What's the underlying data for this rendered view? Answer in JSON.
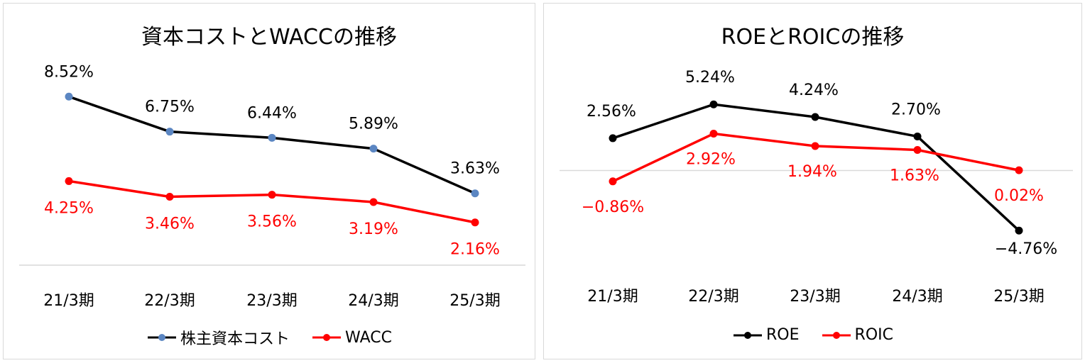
{
  "chart_data": [
    {
      "type": "line",
      "title": "資本コストとWACCの推移",
      "categories": [
        "21/3期",
        "22/3期",
        "23/3期",
        "24/3期",
        "25/3期"
      ],
      "series": [
        {
          "name": "株主資本コスト",
          "values": [
            8.52,
            6.75,
            6.44,
            5.89,
            3.63
          ],
          "labels": [
            "8.52%",
            "6.75%",
            "6.44%",
            "5.89%",
            "3.63%"
          ],
          "line_color": "#000000",
          "marker_color": "#5b86c2",
          "label_color": "#000000"
        },
        {
          "name": "WACC",
          "values": [
            4.25,
            3.46,
            3.56,
            3.19,
            2.16
          ],
          "labels": [
            "4.25%",
            "3.46%",
            "3.56%",
            "3.19%",
            "2.16%"
          ],
          "line_color": "#ff0000",
          "marker_color": "#ff0000",
          "label_color": "#ff0000"
        }
      ],
      "legend_position": "bottom",
      "grid": false
    },
    {
      "type": "line",
      "title": "ROEとROICの推移",
      "categories": [
        "21/3期",
        "22/3期",
        "23/3期",
        "24/3期",
        "25/3期"
      ],
      "series": [
        {
          "name": "ROE",
          "values": [
            2.56,
            5.24,
            4.24,
            2.7,
            -4.76
          ],
          "labels": [
            "2.56%",
            "5.24%",
            "4.24%",
            "2.70%",
            "−4.76%"
          ],
          "line_color": "#000000",
          "marker_color": "#000000",
          "label_color": "#000000"
        },
        {
          "name": "ROIC",
          "values": [
            -0.86,
            2.92,
            1.94,
            1.63,
            0.02
          ],
          "labels": [
            "−0.86%",
            "2.92%",
            "1.94%",
            "1.63%",
            "0.02%"
          ],
          "line_color": "#ff0000",
          "marker_color": "#ff0000",
          "label_color": "#ff0000"
        }
      ],
      "legend_position": "bottom",
      "grid": false
    }
  ]
}
